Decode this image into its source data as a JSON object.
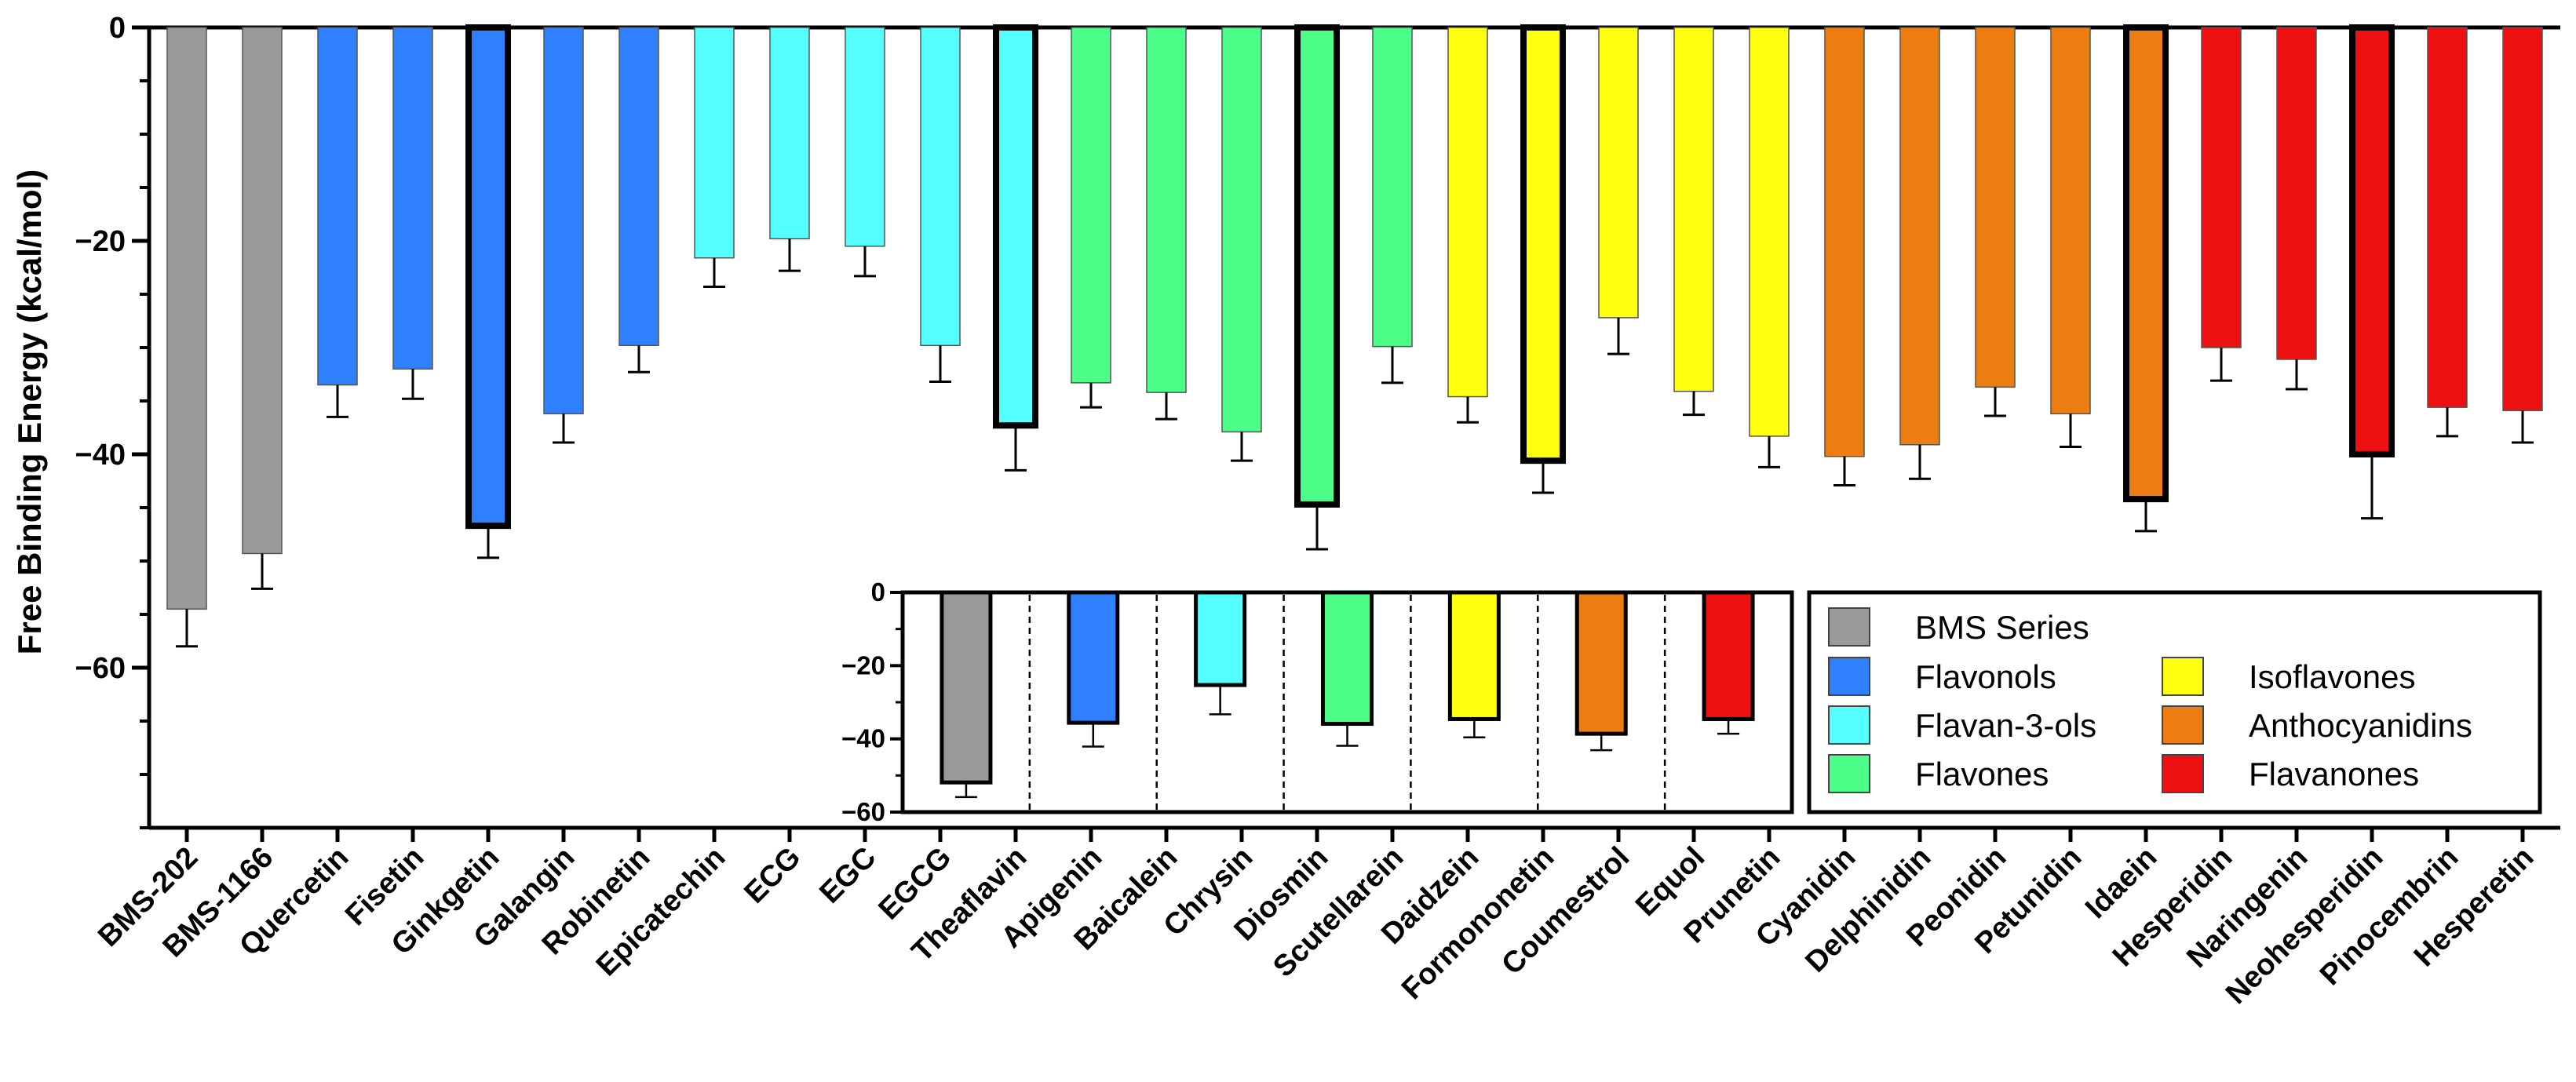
{
  "chart_data": [
    {
      "type": "bar",
      "ylabel": "Free Binding Energy (kcal/mol)",
      "ylim": [
        -75,
        0
      ],
      "yticks": [
        0,
        -20,
        -40,
        -60
      ],
      "categories": [
        "BMS-202",
        "BMS-1166",
        "Quercetin",
        "Fisetin",
        "Ginkgetin",
        "Galangin",
        "Robinetin",
        "Epicatechin",
        "ECG",
        "EGC",
        "EGCG",
        "Theaflavin",
        "Apigenin",
        "Baicalein",
        "Chrysin",
        "Diosmin",
        "Scutellarein",
        "Daidzein",
        "Formononetin",
        "Coumestrol",
        "Equol",
        "Prunetin",
        "Cyanidin",
        "Delphinidin",
        "Peonidin",
        "Petunidin",
        "Idaein",
        "Hesperidin",
        "Naringenin",
        "Neohesperidin",
        "Pinocembrin",
        "Hesperetin"
      ],
      "values": [
        -54.5,
        -49.3,
        -33.5,
        -32.0,
        -46.7,
        -36.2,
        -29.8,
        -21.6,
        -19.8,
        -20.5,
        -29.8,
        -37.3,
        -33.3,
        -34.2,
        -37.9,
        -44.7,
        -29.9,
        -34.6,
        -40.6,
        -27.2,
        -34.1,
        -38.3,
        -40.2,
        -39.1,
        -33.7,
        -36.2,
        -44.2,
        -30.0,
        -31.1,
        -40.0,
        -35.6,
        -35.9
      ],
      "errors": [
        3.5,
        3.3,
        3.0,
        2.8,
        3.0,
        2.7,
        2.5,
        2.7,
        3.0,
        2.8,
        3.4,
        4.2,
        2.3,
        2.5,
        2.7,
        4.2,
        3.4,
        2.4,
        3.0,
        3.4,
        2.2,
        2.9,
        2.7,
        3.2,
        2.7,
        3.1,
        3.0,
        3.1,
        2.8,
        6.0,
        2.7,
        3.0
      ],
      "groups": [
        "BMS Series",
        "BMS Series",
        "Flavonols",
        "Flavonols",
        "Flavonols",
        "Flavonols",
        "Flavonols",
        "Flavan-3-ols",
        "Flavan-3-ols",
        "Flavan-3-ols",
        "Flavan-3-ols",
        "Flavan-3-ols",
        "Flavones",
        "Flavones",
        "Flavones",
        "Flavones",
        "Flavones",
        "Isoflavones",
        "Isoflavones",
        "Isoflavones",
        "Isoflavones",
        "Isoflavones",
        "Anthocyanidins",
        "Anthocyanidins",
        "Anthocyanidins",
        "Anthocyanidins",
        "Anthocyanidins",
        "Flavanones",
        "Flavanones",
        "Flavanones",
        "Flavanones",
        "Flavanones"
      ],
      "highlighted": [
        "Ginkgetin",
        "Theaflavin",
        "Diosmin",
        "Formononetin",
        "Idaein",
        "Neohesperidin"
      ],
      "grid": false
    },
    {
      "type": "bar",
      "title": "",
      "ylim": [
        -60,
        0
      ],
      "yticks": [
        0,
        -20,
        -40,
        -60
      ],
      "categories": [
        "BMS Series",
        "Flavonols",
        "Flavan-3-ols",
        "Flavones",
        "Isoflavones",
        "Anthocyanidins",
        "Flavanones"
      ],
      "values": [
        -51.9,
        -35.6,
        -25.3,
        -35.9,
        -34.6,
        -38.6,
        -34.6
      ],
      "errors": [
        4.0,
        6.5,
        8.0,
        6.0,
        5.0,
        4.5,
        4.0
      ],
      "grid": false
    }
  ],
  "legend": {
    "placement": "bottom-right",
    "items": [
      {
        "label": "BMS Series",
        "color": "#999999"
      },
      {
        "label": "Flavonols",
        "color": "#2F80FF"
      },
      {
        "label": "Flavan-3-ols",
        "color": "#55FFFF"
      },
      {
        "label": "Flavones",
        "color": "#4DFF88"
      },
      {
        "label": "Isoflavones",
        "color": "#FFFF11"
      },
      {
        "label": "Anthocyanidins",
        "color": "#EE7D11"
      },
      {
        "label": "Flavanones",
        "color": "#EE1111"
      }
    ]
  },
  "colors": {
    "BMS Series": "#999999",
    "Flavonols": "#2F80FF",
    "Flavan-3-ols": "#55FFFF",
    "Flavones": "#4DFF88",
    "Isoflavones": "#FFFF11",
    "Anthocyanidins": "#EE7D11",
    "Flavanones": "#EE1111"
  }
}
